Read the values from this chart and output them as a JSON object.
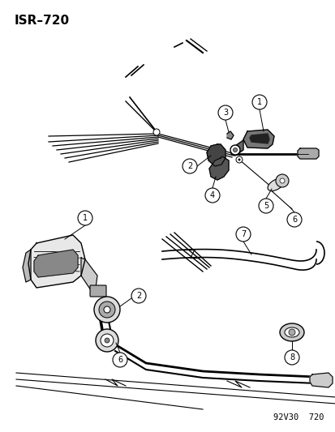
{
  "title_text": "ISR–720",
  "footer_text": "92V30  720",
  "bg_color": "#ffffff",
  "line_color": "#000000",
  "title_fontsize": 11,
  "footer_fontsize": 7.5
}
